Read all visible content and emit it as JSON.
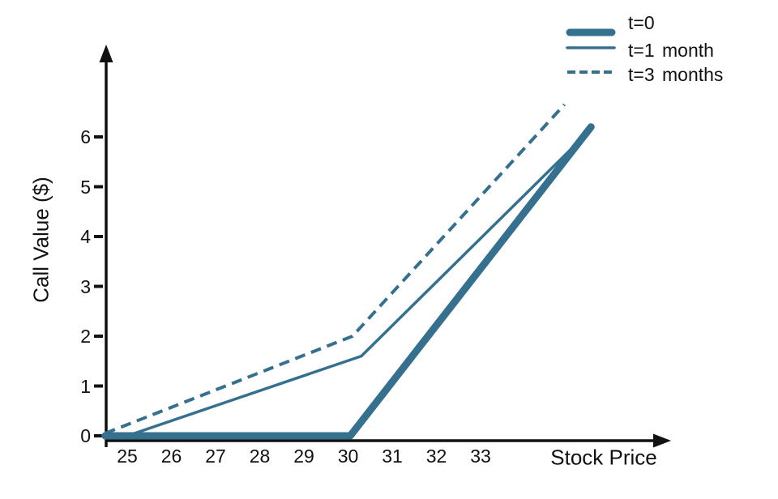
{
  "chart_data": {
    "type": "line",
    "title": "",
    "xlabel": "Stock Price",
    "ylabel": "Call Value ($)",
    "x_ticks": [
      25,
      26,
      27,
      28,
      29,
      30,
      31,
      32,
      33
    ],
    "y_ticks": [
      0,
      1,
      2,
      3,
      4,
      5,
      6
    ],
    "xlim": [
      24.4,
      36.2
    ],
    "ylim": [
      -0.2,
      7.9
    ],
    "grid": false,
    "legend_position": "top-right",
    "line_color": "#35708f",
    "axis_color": "#111111",
    "series": [
      {
        "name": "t=0",
        "style": "thick-solid",
        "points": [
          [
            24.5,
            0
          ],
          [
            30.05,
            0
          ],
          [
            35.5,
            6.2
          ]
        ]
      },
      {
        "name": "t=1 month",
        "style": "thin-solid",
        "points": [
          [
            25,
            0
          ],
          [
            30.3,
            1.6
          ],
          [
            35.5,
            6.15
          ]
        ]
      },
      {
        "name": "t=3 months",
        "style": "dashed",
        "points": [
          [
            24.5,
            0.05
          ],
          [
            30.1,
            2.0
          ],
          [
            34.9,
            6.65
          ]
        ]
      }
    ]
  }
}
